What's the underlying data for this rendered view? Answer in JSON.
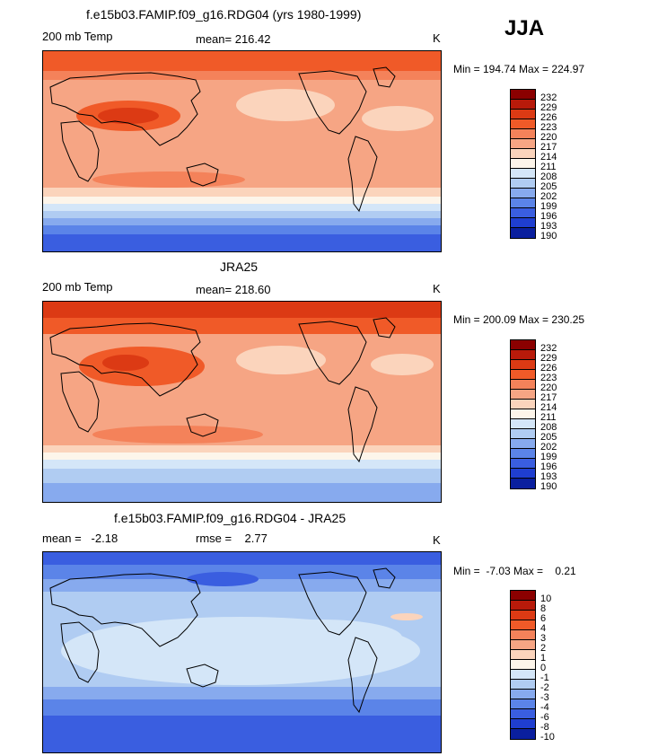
{
  "season": "JJA",
  "panels": [
    {
      "title": "f.e15b03.FAMIP.f09_g16.RDG04 (yrs 1980-1999)",
      "left_label": "200 mb Temp",
      "center_label": "mean=  216.42",
      "right_label": "K",
      "minmax": "Min = 194.74 Max = 224.97",
      "levels": [
        "232",
        "229",
        "226",
        "223",
        "220",
        "217",
        "214",
        "211",
        "208",
        "205",
        "202",
        "199",
        "196",
        "193",
        "190"
      ],
      "colors": [
        "#8b0000",
        "#b81a0a",
        "#dc3a14",
        "#f05a28",
        "#f4825a",
        "#f6a584",
        "#fbd4bc",
        "#fdf5ea",
        "#d4e6f8",
        "#b0ccf2",
        "#87aaee",
        "#5b84e8",
        "#3a5ee0",
        "#1f3ed0",
        "#0a1f9e"
      ]
    },
    {
      "title": "JRA25",
      "left_label": "200 mb Temp",
      "center_label": "mean=  218.60",
      "right_label": "K",
      "minmax": "Min = 200.09 Max = 230.25",
      "levels": [
        "232",
        "229",
        "226",
        "223",
        "220",
        "217",
        "214",
        "211",
        "208",
        "205",
        "202",
        "199",
        "196",
        "193",
        "190"
      ],
      "colors": [
        "#8b0000",
        "#b81a0a",
        "#dc3a14",
        "#f05a28",
        "#f4825a",
        "#f6a584",
        "#fbd4bc",
        "#fdf5ea",
        "#d4e6f8",
        "#b0ccf2",
        "#87aaee",
        "#5b84e8",
        "#3a5ee0",
        "#1f3ed0",
        "#0a1f9e"
      ]
    },
    {
      "title": "f.e15b03.FAMIP.f09_g16.RDG04 - JRA25",
      "left_label": "mean =   -2.18",
      "center_label": "rmse =    2.77",
      "right_label": "K",
      "minmax": "Min =  -7.03 Max =    0.21",
      "levels": [
        "10",
        "8",
        "6",
        "4",
        "3",
        "2",
        "1",
        "0",
        "-1",
        "-2",
        "-3",
        "-4",
        "-6",
        "-8",
        "-10"
      ],
      "colors": [
        "#8b0000",
        "#b81a0a",
        "#dc3a14",
        "#f05a28",
        "#f4825a",
        "#f6a584",
        "#fbd4bc",
        "#fdf5ea",
        "#d4e6f8",
        "#b0ccf2",
        "#87aaee",
        "#5b84e8",
        "#3a5ee0",
        "#1f3ed0",
        "#0a1f9e"
      ]
    }
  ]
}
